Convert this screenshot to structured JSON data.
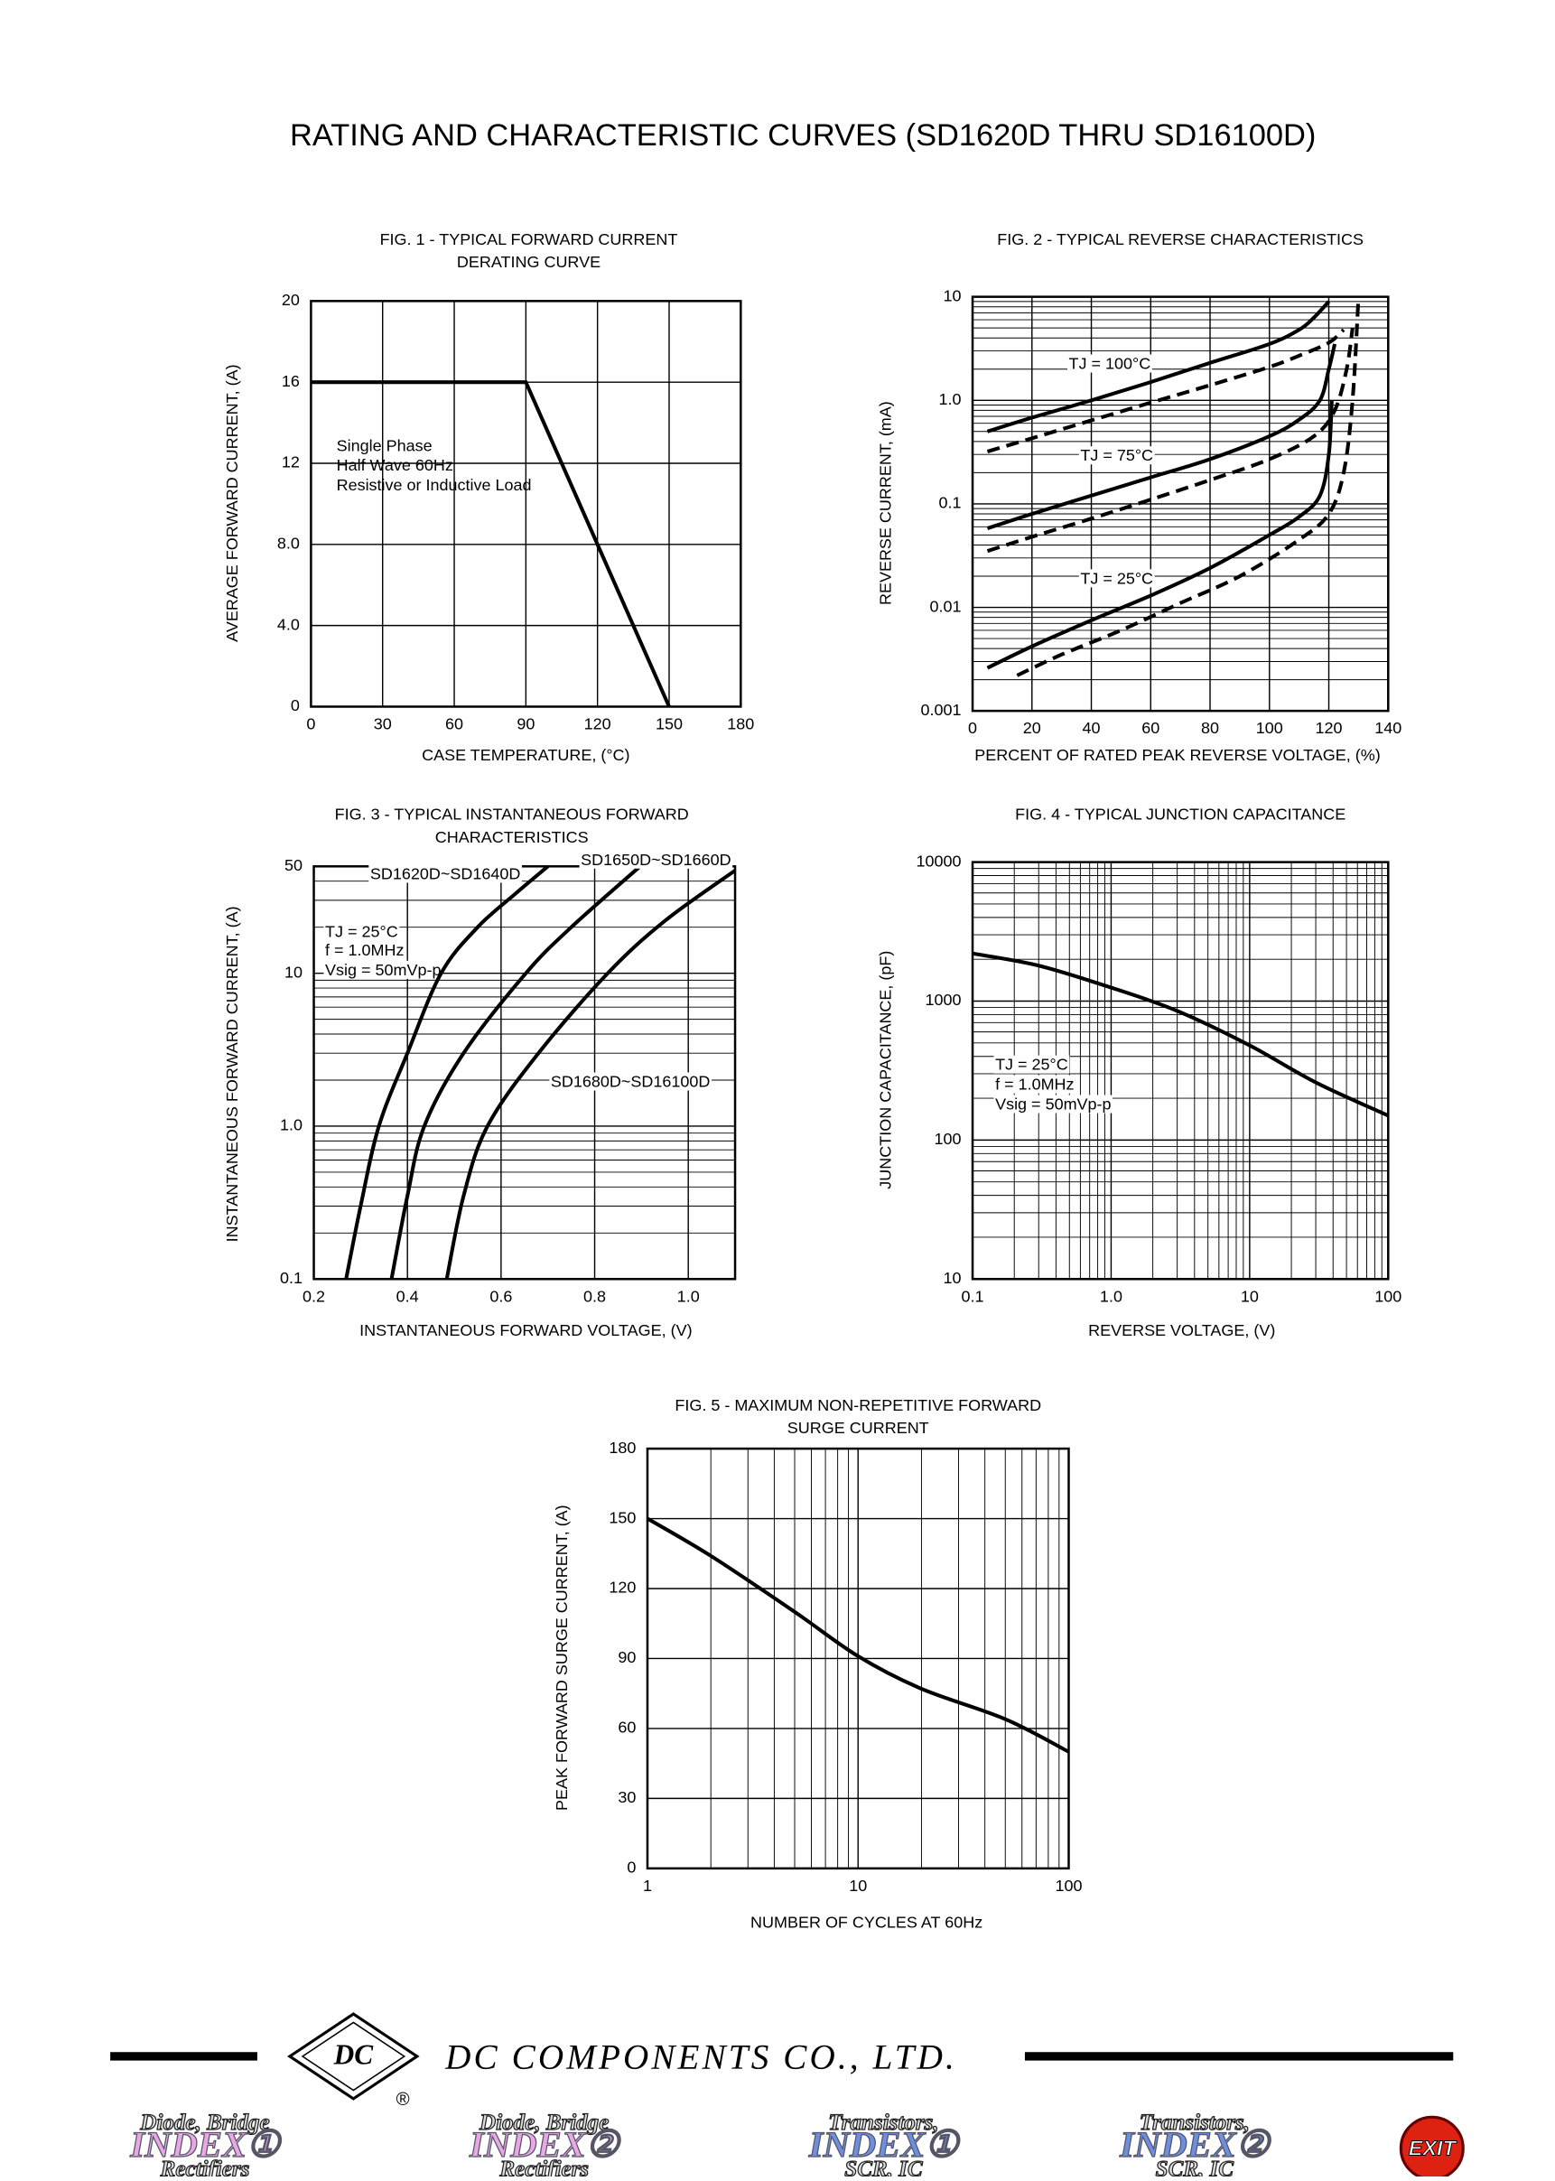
{
  "header": {
    "title": "RATING AND CHARACTERISTIC CURVES (SD1620D THRU SD16100D)"
  },
  "chart_data": [
    {
      "type": "line",
      "title": [
        "FIG. 1 - TYPICAL FORWARD CURRENT",
        "DERATING CURVE"
      ],
      "x_label": "CASE TEMPERATURE, (°C)",
      "y_label": "AVERAGE FORWARD CURRENT, (A)",
      "xlim": [
        0,
        180
      ],
      "xticks": [
        0,
        30,
        60,
        90,
        120,
        150,
        180
      ],
      "ylim": [
        0,
        20
      ],
      "yticks": [
        0,
        {
          "value": 4,
          "label": "4.0"
        },
        {
          "value": 8,
          "label": "8.0"
        },
        12,
        16,
        20
      ],
      "grid": true,
      "smooth": false,
      "annotations": [
        "Single Phase",
        "Half Wave 60Hz",
        "Resistive or Inductive Load"
      ],
      "series": [
        {
          "color": "#000",
          "x": [
            0,
            90,
            150
          ],
          "values": [
            16,
            16,
            0
          ]
        }
      ]
    },
    {
      "type": "line",
      "title": [
        "FIG. 2 - TYPICAL REVERSE CHARACTERISTICS"
      ],
      "x_label": "PERCENT OF RATED PEAK REVERSE VOLTAGE, (%)",
      "y_label": "REVERSE CURRENT, (mA)",
      "xlim": [
        0,
        140
      ],
      "xticks": [
        0,
        20,
        40,
        60,
        80,
        100,
        120,
        140
      ],
      "ylim": [
        0.001,
        10
      ],
      "yticks": [
        0.001,
        0.01,
        0.1,
        {
          "value": 1,
          "label": "1.0"
        },
        10
      ],
      "ylog": true,
      "grid": true,
      "minor_grid": true,
      "smooth": true,
      "series": [
        {
          "name": "TJ = 100°C",
          "color": "#000",
          "dash": false,
          "x": [
            5,
            20,
            40,
            60,
            80,
            100,
            110,
            115,
            120
          ],
          "values": [
            0.5,
            0.68,
            1.0,
            1.5,
            2.3,
            3.5,
            4.8,
            6.3,
            9
          ]
        },
        {
          "color": "#000",
          "dash": true,
          "x": [
            5,
            20,
            40,
            60,
            80,
            100,
            110,
            120,
            125
          ],
          "values": [
            0.32,
            0.43,
            0.64,
            0.95,
            1.4,
            2.1,
            2.7,
            3.6,
            4.8
          ]
        },
        {
          "name": "TJ = 75°C",
          "color": "#000",
          "dash": false,
          "x": [
            5,
            20,
            40,
            60,
            80,
            100,
            110,
            117,
            120,
            122
          ],
          "values": [
            0.058,
            0.08,
            0.12,
            0.18,
            0.27,
            0.45,
            0.65,
            1.0,
            2.0,
            3.5
          ]
        },
        {
          "color": "#000",
          "dash": true,
          "x": [
            5,
            20,
            40,
            60,
            80,
            100,
            115,
            122,
            126,
            128
          ],
          "values": [
            0.035,
            0.048,
            0.072,
            0.11,
            0.17,
            0.27,
            0.45,
            0.8,
            2,
            5
          ]
        },
        {
          "name": "TJ = 25°C",
          "color": "#000",
          "dash": false,
          "x": [
            5,
            20,
            40,
            60,
            80,
            100,
            110,
            117,
            120,
            121
          ],
          "values": [
            0.0026,
            0.0042,
            0.0075,
            0.013,
            0.024,
            0.05,
            0.075,
            0.12,
            0.3,
            1.0
          ]
        },
        {
          "color": "#000",
          "dash": true,
          "x": [
            15,
            30,
            50,
            70,
            90,
            110,
            120,
            125,
            128,
            130
          ],
          "values": [
            0.0022,
            0.0035,
            0.006,
            0.011,
            0.02,
            0.045,
            0.08,
            0.2,
            1,
            10
          ]
        }
      ]
    },
    {
      "type": "line",
      "title": [
        "FIG. 3 - TYPICAL INSTANTANEOUS FORWARD",
        "CHARACTERISTICS"
      ],
      "x_label": "INSTANTANEOUS FORWARD VOLTAGE, (V)",
      "y_label": "INSTANTANEOUS FORWARD CURRENT, (A)",
      "xlim": [
        0.2,
        1.1
      ],
      "xticks": [
        0.2,
        0.4,
        0.6,
        0.8,
        {
          "value": 1,
          "label": "1.0"
        }
      ],
      "ylim": [
        0.1,
        50
      ],
      "yticks": [
        0.1,
        {
          "value": 1,
          "label": "1.0"
        },
        10,
        50
      ],
      "ylog": true,
      "grid": true,
      "minor_grid": true,
      "smooth": true,
      "annotations": [
        "TJ = 25°C",
        "f = 1.0MHz",
        "Vsig = 50mVp-p"
      ],
      "series": [
        {
          "name": "SD1620D~SD1640D",
          "color": "#000",
          "x": [
            0.269,
            0.3,
            0.339,
            0.4,
            0.472,
            0.55,
            0.63,
            0.7
          ],
          "values": [
            0.1,
            0.3,
            1,
            3,
            10,
            20,
            33,
            50
          ]
        },
        {
          "name": "SD1650D~SD1660D",
          "color": "#000",
          "x": [
            0.366,
            0.4,
            0.436,
            0.52,
            0.653,
            0.75,
            0.897
          ],
          "values": [
            0.1,
            0.35,
            1,
            3,
            10,
            20,
            50
          ]
        },
        {
          "name": "SD1680D~SD16100D",
          "color": "#000",
          "x": [
            0.484,
            0.52,
            0.571,
            0.68,
            0.828,
            0.95,
            1.1
          ],
          "values": [
            0.1,
            0.35,
            1,
            3,
            10,
            22,
            47
          ]
        }
      ]
    },
    {
      "type": "line",
      "title": [
        "FIG. 4 - TYPICAL JUNCTION CAPACITANCE"
      ],
      "x_label": "REVERSE VOLTAGE, (V)",
      "y_label": "JUNCTION CAPACITANCE, (pF)",
      "xlim": [
        0.1,
        100
      ],
      "xticks": [
        0.1,
        {
          "value": 1,
          "label": "1.0"
        },
        10,
        100
      ],
      "ylim": [
        10,
        10000
      ],
      "yticks": [
        10,
        100,
        1000,
        10000
      ],
      "xlog": true,
      "ylog": true,
      "grid": true,
      "minor_grid": true,
      "smooth": true,
      "annotations": [
        "TJ = 25°C",
        "f = 1.0MHz",
        "Vsig = 50mVp-p"
      ],
      "series": [
        {
          "color": "#000",
          "x": [
            0.1,
            0.3,
            1,
            3,
            10,
            30,
            100
          ],
          "values": [
            2200,
            1800,
            1250,
            850,
            480,
            260,
            150
          ]
        }
      ]
    },
    {
      "type": "line",
      "title": [
        "FIG. 5 - MAXIMUM NON-REPETITIVE FORWARD",
        "SURGE CURRENT"
      ],
      "x_label": "NUMBER OF CYCLES AT 60Hz",
      "y_label": "PEAK FORWARD SURGE CURRENT, (A)",
      "xlim": [
        1,
        100
      ],
      "xticks": [
        1,
        10,
        100
      ],
      "ylim": [
        0,
        180
      ],
      "yticks": [
        0,
        30,
        60,
        90,
        120,
        150,
        180
      ],
      "xlog": true,
      "grid": true,
      "minor_grid": true,
      "smooth": true,
      "series": [
        {
          "color": "#000",
          "x": [
            1,
            2,
            5,
            10,
            20,
            50,
            100
          ],
          "values": [
            150,
            134,
            110,
            91,
            77,
            64,
            50
          ]
        }
      ]
    }
  ],
  "footer": {
    "logo": "DC",
    "company": "DC COMPONENTS CO., LTD.",
    "mark": "®",
    "buttons": [
      {
        "lines": [
          "Diode, Bridge",
          "INDEX①",
          "Rectifiers"
        ]
      },
      {
        "lines": [
          "Diode, Bridge",
          "INDEX②",
          "Rectifiers"
        ]
      },
      {
        "lines": [
          "Transistors,",
          "INDEX①",
          "SCR, IC"
        ]
      },
      {
        "lines": [
          "Transistors,",
          "INDEX②",
          "SCR, IC"
        ]
      },
      {
        "lines": [
          "EXIT"
        ]
      }
    ]
  }
}
